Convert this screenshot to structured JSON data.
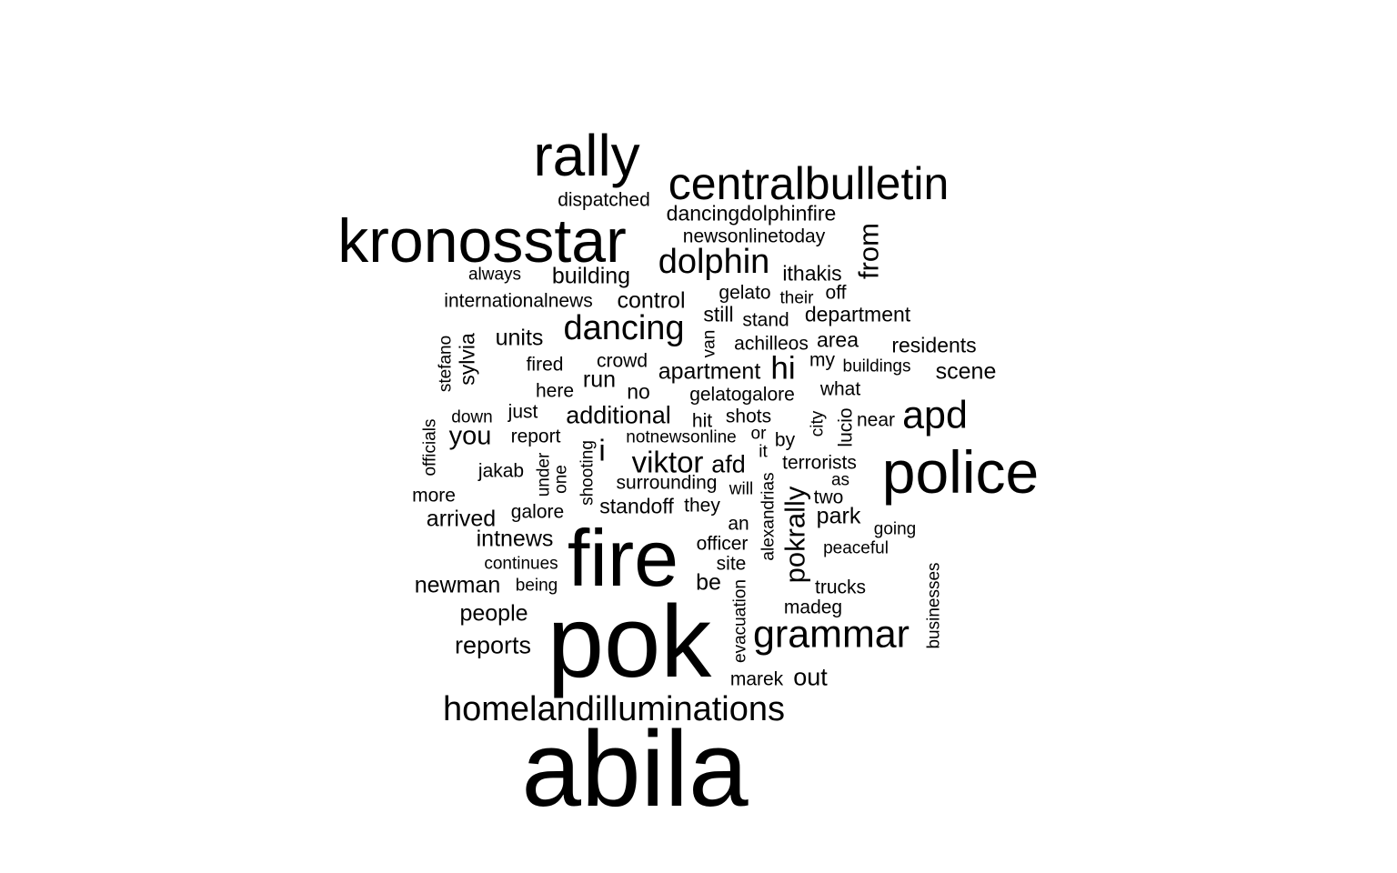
{
  "word_cloud": {
    "text_color": "#000000",
    "background_color": "#ffffff",
    "words": [
      "abila",
      "pok",
      "fire",
      "police",
      "kronosstar",
      "rally",
      "centralbulletin",
      "homelandilluminations",
      "grammar",
      "apd",
      "dancing",
      "dolphin",
      "viktor",
      "pokrally",
      "from",
      "dancingdolphinfire",
      "newsonlinetoday",
      "dispatched",
      "building",
      "always",
      "ithakis",
      "internationalnews",
      "control",
      "gelato",
      "their",
      "off",
      "still",
      "stand",
      "department",
      "units",
      "van",
      "achilleos",
      "area",
      "residents",
      "stefano",
      "sylvia",
      "fired",
      "crowd",
      "my",
      "buildings",
      "hi",
      "scene",
      "apartment",
      "run",
      "here",
      "no",
      "gelatogalore",
      "what",
      "additional",
      "just",
      "down",
      "shots",
      "hit",
      "city",
      "lucio",
      "near",
      "officials",
      "you",
      "report",
      "i",
      "notnewsonline",
      "or",
      "by",
      "jakab",
      "under",
      "one",
      "shooting",
      "afd",
      "it",
      "terrorists",
      "surrounding",
      "alexandrias",
      "as",
      "will",
      "more",
      "two",
      "arrived",
      "galore",
      "standoff",
      "they",
      "park",
      "an",
      "going",
      "intnews",
      "officer",
      "peaceful",
      "continues",
      "site",
      "newman",
      "being",
      "be",
      "trucks",
      "evacuation",
      "businesses",
      "people",
      "madeg",
      "reports",
      "marek",
      "out"
    ]
  }
}
